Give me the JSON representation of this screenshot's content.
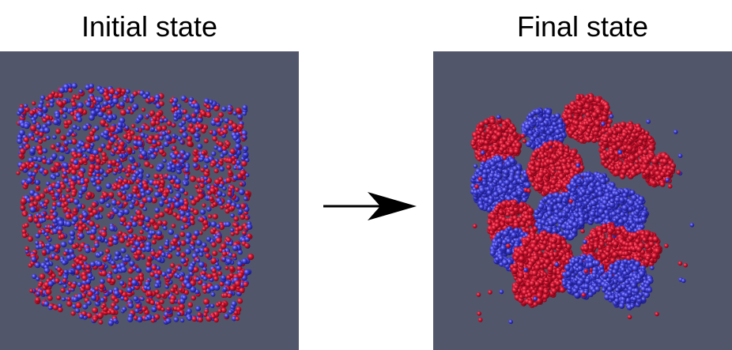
{
  "panels": {
    "initial": {
      "title": "Initial state"
    },
    "final": {
      "title": "Final state"
    }
  },
  "colors": {
    "background": "#52566a",
    "particle_red": "#d0102e",
    "particle_blue": "#3b3bd6",
    "arrow": "#000000"
  }
}
